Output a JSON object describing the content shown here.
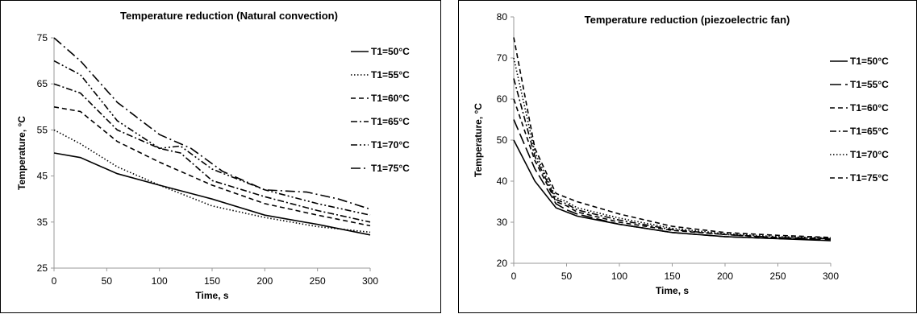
{
  "chart_data": [
    {
      "type": "line",
      "title": "Temperature reduction (Natural convection)",
      "xlabel": "Time, s",
      "ylabel": "Temperature, °C",
      "xlim": [
        0,
        300
      ],
      "ylim": [
        25,
        75
      ],
      "xticks": [
        0,
        50,
        100,
        150,
        200,
        250,
        300
      ],
      "yticks": [
        25,
        35,
        45,
        55,
        65,
        75
      ],
      "grid": false,
      "legend_position": "right",
      "series": [
        {
          "name": "T1=50°C",
          "dash": "solid",
          "x": [
            0,
            25,
            60,
            100,
            150,
            200,
            250,
            300
          ],
          "y": [
            50,
            49,
            45.5,
            43,
            40,
            36.5,
            34.5,
            32.2
          ]
        },
        {
          "name": "T1=55°C",
          "dash": "dot",
          "x": [
            0,
            25,
            60,
            100,
            150,
            200,
            250,
            300
          ],
          "y": [
            55,
            52,
            47,
            43,
            38.5,
            36,
            34,
            32.8
          ]
        },
        {
          "name": "T1=60°C",
          "dash": "dash",
          "x": [
            0,
            25,
            60,
            100,
            150,
            200,
            250,
            300
          ],
          "y": [
            60,
            59,
            52.5,
            48,
            43,
            39,
            36.5,
            34.2
          ]
        },
        {
          "name": "T1=65°C",
          "dash": "dashdot",
          "x": [
            0,
            25,
            60,
            100,
            120,
            150,
            200,
            250,
            300
          ],
          "y": [
            65,
            63,
            55,
            51,
            50,
            44,
            40.5,
            37.5,
            35
          ]
        },
        {
          "name": "T1=70°C",
          "dash": "dashdotdot",
          "x": [
            0,
            25,
            60,
            100,
            120,
            150,
            200,
            250,
            300
          ],
          "y": [
            70,
            67,
            57,
            51,
            51.5,
            46.5,
            42,
            39,
            36.5
          ]
        },
        {
          "name": "T1=75°C",
          "dash": "longdashdot",
          "x": [
            0,
            25,
            60,
            100,
            130,
            160,
            200,
            240,
            270,
            300
          ],
          "y": [
            75,
            70,
            61,
            54,
            51,
            46,
            42,
            41.5,
            40,
            37.8
          ]
        }
      ]
    },
    {
      "type": "line",
      "title": "Temperature reduction (piezoelectric fan)",
      "xlabel": "Time, s",
      "ylabel": "Temperature, °C",
      "xlim": [
        0,
        300
      ],
      "ylim": [
        20,
        80
      ],
      "xticks": [
        0,
        50,
        100,
        150,
        200,
        250,
        300
      ],
      "yticks": [
        20,
        30,
        40,
        50,
        60,
        70,
        80
      ],
      "grid": false,
      "legend_position": "right",
      "series": [
        {
          "name": "T1=50°C",
          "dash": "solid",
          "x": [
            0,
            20,
            40,
            50,
            60,
            100,
            150,
            200,
            250,
            300
          ],
          "y": [
            50,
            40,
            33.5,
            32.5,
            31.5,
            29.5,
            27.5,
            26.5,
            26,
            25.5
          ]
        },
        {
          "name": "T1=55°C",
          "dash": "longdash",
          "x": [
            0,
            20,
            40,
            50,
            60,
            100,
            150,
            200,
            250,
            300
          ],
          "y": [
            55,
            43,
            34.5,
            33,
            32,
            29.5,
            27.5,
            26.5,
            26,
            25.8
          ]
        },
        {
          "name": "T1=60°C",
          "dash": "dash",
          "x": [
            0,
            20,
            40,
            50,
            60,
            100,
            150,
            200,
            250,
            300
          ],
          "y": [
            60,
            45,
            35,
            34,
            32.5,
            30,
            28,
            27,
            26.2,
            26
          ]
        },
        {
          "name": "T1=65°C",
          "dash": "dashdot",
          "x": [
            0,
            20,
            40,
            50,
            60,
            100,
            150,
            200,
            250,
            300
          ],
          "y": [
            65,
            46,
            35.5,
            34.5,
            33,
            30.5,
            28.2,
            27,
            26.3,
            26
          ]
        },
        {
          "name": "T1=70°C",
          "dash": "dot",
          "x": [
            0,
            20,
            40,
            50,
            60,
            100,
            150,
            200,
            250,
            300
          ],
          "y": [
            70,
            47,
            36,
            35,
            33.5,
            31,
            28.5,
            27.2,
            26.5,
            26.2
          ]
        },
        {
          "name": "T1=75°C",
          "dash": "dash",
          "x": [
            0,
            20,
            40,
            50,
            60,
            100,
            150,
            200,
            250,
            300
          ],
          "y": [
            75,
            48,
            37,
            36,
            35,
            32,
            29,
            27.5,
            26.8,
            26.3
          ]
        }
      ]
    }
  ]
}
